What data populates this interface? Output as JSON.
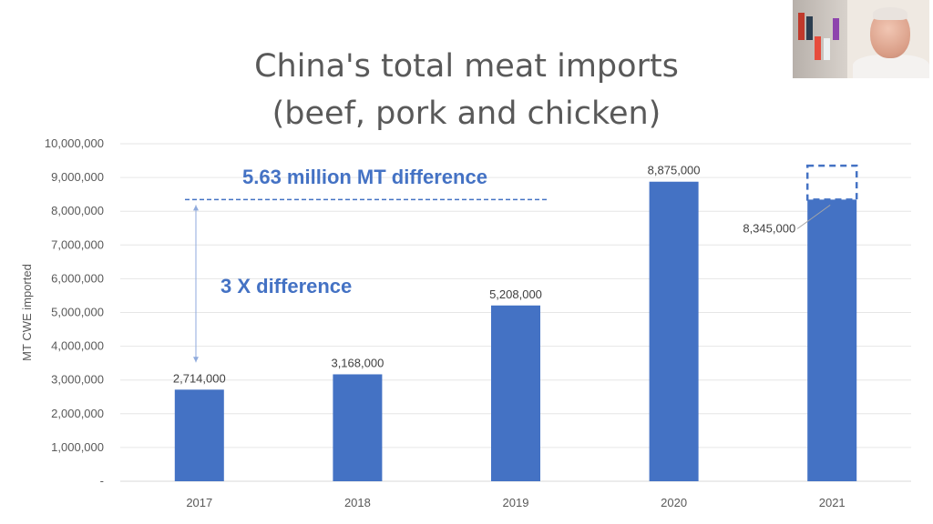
{
  "chart_data": {
    "type": "bar",
    "title": "China's total meat imports",
    "subtitle": "(beef, pork and chicken)",
    "ylabel": "MT CWE imported",
    "xlabel": "",
    "categories": [
      "2017",
      "2018",
      "2019",
      "2020",
      "2021"
    ],
    "values": [
      2714000,
      3168000,
      5208000,
      8875000,
      8345000
    ],
    "data_labels": [
      "2,714,000",
      "3,168,000",
      "5,208,000",
      "8,875,000",
      "8,345,000"
    ],
    "ylim": [
      0,
      10000000
    ],
    "yticks": [
      0,
      1000000,
      2000000,
      3000000,
      4000000,
      5000000,
      6000000,
      7000000,
      8000000,
      9000000,
      10000000
    ],
    "ytick_labels": [
      "-",
      "1,000,000",
      "2,000,000",
      "3,000,000",
      "4,000,000",
      "5,000,000",
      "6,000,000",
      "7,000,000",
      "8,000,000",
      "9,000,000",
      "10,000,000"
    ],
    "grid": true,
    "bar_color": "#4472C4",
    "annotations": [
      {
        "text": "5.63 million MT difference",
        "color": "#4472C4"
      },
      {
        "text": "3 X difference",
        "color": "#4472C4"
      }
    ],
    "reference_line_value": 8345000,
    "dashed_box_range": [
      8345000,
      9350000
    ]
  }
}
